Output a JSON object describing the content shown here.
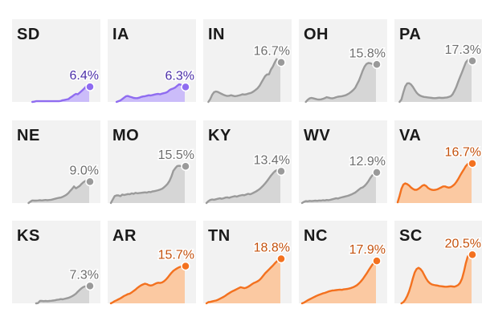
{
  "colors": {
    "purple": "#8f6cf0",
    "purple_fill": "#cbbcf9",
    "purple_text": "#4b2fa8",
    "gray": "#9a9a9a",
    "gray_fill": "#d6d6d6",
    "gray_text": "#6e6e6e",
    "orange": "#f3711f",
    "orange_fill": "#fbc9a2",
    "orange_text": "#c4520e",
    "panel_bg": "#f2f2f2"
  },
  "chart_data": {
    "type": "area",
    "description_of_units": "",
    "ylim": [
      0,
      22
    ],
    "x_points": 40,
    "panels": [
      {
        "state": "SD",
        "latest": 6.4,
        "label": "6.4%",
        "category": "purple",
        "values": [
          0,
          0,
          0,
          0,
          0,
          0,
          0,
          0,
          0,
          0,
          0.1,
          0.3,
          0.3,
          0.3,
          0.3,
          0.3,
          0.3,
          0.3,
          0.3,
          0.3,
          0.3,
          0.3,
          0.3,
          0.3,
          0.4,
          0.7,
          0.8,
          1.0,
          1.2,
          1.8,
          2.3,
          2.9,
          3.4,
          3.2,
          3.9,
          4.6,
          5.3,
          6.2,
          7.2,
          6.4
        ]
      },
      {
        "state": "IA",
        "latest": 6.3,
        "label": "6.3%",
        "category": "purple",
        "values": [
          0,
          0,
          0,
          0,
          0.3,
          0.6,
          1.2,
          1.8,
          2.4,
          2.5,
          2.2,
          2.0,
          1.7,
          1.6,
          1.6,
          1.8,
          2.1,
          2.3,
          2.4,
          2.6,
          2.8,
          2.7,
          2.9,
          3.1,
          3.3,
          3.4,
          3.2,
          3.5,
          3.7,
          3.9,
          4.3,
          5.0,
          5.4,
          5.7,
          6.1,
          6.8,
          7.4,
          7.2,
          6.9,
          6.3
        ]
      },
      {
        "state": "IN",
        "latest": 16.7,
        "label": "16.7%",
        "category": "gray",
        "values": [
          0,
          0,
          1.2,
          3.0,
          4.1,
          4.4,
          4.2,
          3.8,
          3.4,
          3.0,
          2.7,
          2.5,
          2.6,
          2.8,
          2.6,
          2.4,
          2.5,
          2.7,
          2.9,
          3.2,
          3.1,
          3.2,
          3.5,
          3.7,
          4.0,
          4.5,
          5.1,
          5.8,
          6.8,
          8.2,
          9.6,
          10.9,
          11.6,
          11.6,
          13.6,
          14.9,
          16.6,
          18.0,
          17.4,
          16.7
        ]
      },
      {
        "state": "OH",
        "latest": 15.8,
        "label": "15.8%",
        "category": "gray",
        "values": [
          0,
          0,
          0,
          0.9,
          1.5,
          1.7,
          1.5,
          1.3,
          1.1,
          1.0,
          1.1,
          1.3,
          1.6,
          2.0,
          1.8,
          1.6,
          1.5,
          1.7,
          2.0,
          2.2,
          2.3,
          2.4,
          2.6,
          2.8,
          3.2,
          3.7,
          4.3,
          5.0,
          5.9,
          7.4,
          9.0,
          11.0,
          13.2,
          14.9,
          16.0,
          16.4,
          16.3,
          16.0,
          15.9,
          15.8
        ]
      },
      {
        "state": "PA",
        "latest": 17.3,
        "label": "17.3%",
        "category": "gray",
        "values": [
          0,
          0,
          1.0,
          4.0,
          6.5,
          7.8,
          7.9,
          7.4,
          6.4,
          5.1,
          3.9,
          3.1,
          2.6,
          2.3,
          2.1,
          2.0,
          1.9,
          1.8,
          1.7,
          1.6,
          1.6,
          1.7,
          1.8,
          1.7,
          1.7,
          1.8,
          1.9,
          2.1,
          2.4,
          3.2,
          4.7,
          6.4,
          8.6,
          10.6,
          12.6,
          14.7,
          16.7,
          17.6,
          17.6,
          17.3
        ]
      },
      {
        "state": "NE",
        "latest": 9.0,
        "label": "9.0%",
        "category": "gray",
        "values": [
          0,
          0,
          0,
          0,
          0,
          0,
          0,
          0,
          0.6,
          1.1,
          1.0,
          1.0,
          1.1,
          1.2,
          1.1,
          1.2,
          1.3,
          1.2,
          1.3,
          1.4,
          1.6,
          1.8,
          2.0,
          2.2,
          2.3,
          2.6,
          3.0,
          3.5,
          4.2,
          5.1,
          6.0,
          7.0,
          6.2,
          6.7,
          7.2,
          8.1,
          8.8,
          9.3,
          9.1,
          9.0
        ]
      },
      {
        "state": "MO",
        "latest": 15.5,
        "label": "15.5%",
        "category": "gray",
        "values": [
          0,
          1.5,
          2.9,
          3.2,
          3.2,
          2.9,
          3.6,
          3.4,
          3.6,
          3.8,
          3.7,
          4.1,
          3.9,
          4.3,
          4.1,
          4.2,
          4.3,
          4.4,
          4.5,
          4.4,
          4.7,
          4.6,
          4.9,
          5.0,
          5.2,
          5.4,
          5.7,
          6.0,
          6.6,
          7.3,
          8.2,
          9.4,
          11.3,
          13.6,
          14.7,
          15.6,
          15.7,
          15.6,
          15.5,
          15.5
        ]
      },
      {
        "state": "KY",
        "latest": 13.4,
        "label": "13.4%",
        "category": "gray",
        "values": [
          0,
          0.8,
          1.3,
          1.5,
          1.4,
          1.6,
          1.8,
          2.0,
          1.8,
          2.0,
          2.3,
          2.4,
          2.2,
          2.5,
          2.7,
          2.9,
          2.7,
          3.0,
          3.2,
          3.4,
          3.3,
          3.6,
          3.9,
          3.7,
          4.0,
          4.4,
          4.8,
          5.3,
          5.9,
          6.6,
          7.4,
          8.3,
          9.3,
          10.4,
          11.5,
          12.5,
          13.3,
          13.8,
          13.6,
          13.4
        ]
      },
      {
        "state": "WV",
        "latest": 12.9,
        "label": "12.9%",
        "category": "gray",
        "values": [
          0,
          0.5,
          0.8,
          0.7,
          0.9,
          0.8,
          0.9,
          1.0,
          0.9,
          1.1,
          1.0,
          1.2,
          1.1,
          1.3,
          1.2,
          1.4,
          1.6,
          1.8,
          2.0,
          1.9,
          2.2,
          2.4,
          2.6,
          2.8,
          3.0,
          3.3,
          3.6,
          4.0,
          4.4,
          5.0,
          5.7,
          6.3,
          6.6,
          7.2,
          8.1,
          9.2,
          10.5,
          11.6,
          12.4,
          12.9
        ]
      },
      {
        "state": "VA",
        "latest": 16.7,
        "label": "16.7%",
        "category": "orange",
        "values": [
          0.3,
          3.0,
          6.0,
          7.8,
          8.3,
          8.0,
          7.4,
          6.6,
          6.0,
          5.6,
          5.6,
          6.0,
          6.6,
          7.3,
          7.6,
          7.2,
          6.4,
          5.9,
          5.6,
          5.5,
          5.6,
          5.8,
          6.2,
          6.6,
          7.0,
          7.0,
          6.7,
          6.5,
          6.7,
          7.2,
          7.9,
          8.9,
          10.2,
          11.6,
          13.0,
          14.3,
          15.6,
          16.5,
          16.9,
          16.7
        ]
      },
      {
        "state": "KS",
        "latest": 7.3,
        "label": "7.3%",
        "category": "gray",
        "values": [
          0,
          0,
          0,
          0,
          0,
          0,
          0,
          0,
          0,
          0,
          0,
          0,
          0.1,
          1.0,
          1.0,
          0.9,
          1.0,
          0.9,
          1.0,
          1.1,
          1.2,
          1.3,
          1.5,
          1.6,
          1.8,
          1.7,
          1.9,
          2.1,
          2.3,
          2.6,
          3.0,
          3.5,
          4.1,
          4.9,
          5.7,
          6.4,
          6.9,
          7.2,
          7.3,
          7.3
        ]
      },
      {
        "state": "AR",
        "latest": 15.7,
        "label": "15.7%",
        "category": "orange",
        "values": [
          0,
          0.4,
          0.9,
          1.3,
          1.7,
          2.1,
          2.6,
          3.1,
          3.5,
          3.9,
          4.1,
          4.6,
          5.2,
          5.8,
          6.5,
          7.1,
          7.6,
          8.0,
          8.3,
          8.1,
          7.7,
          7.5,
          7.7,
          8.1,
          8.5,
          8.7,
          8.6,
          8.8,
          9.3,
          10.0,
          10.9,
          11.9,
          12.9,
          13.7,
          14.3,
          14.8,
          15.2,
          15.5,
          15.7,
          15.7
        ]
      },
      {
        "state": "TN",
        "latest": 18.8,
        "label": "18.8%",
        "category": "orange",
        "values": [
          0,
          0.5,
          0.6,
          0.8,
          1.0,
          1.2,
          1.5,
          1.9,
          2.3,
          2.7,
          3.2,
          3.8,
          4.3,
          4.8,
          5.2,
          5.6,
          6.0,
          6.4,
          6.8,
          6.6,
          6.4,
          6.6,
          7.0,
          7.5,
          8.1,
          8.6,
          8.9,
          9.3,
          9.9,
          10.7,
          11.7,
          12.7,
          13.5,
          14.3,
          15.1,
          15.9,
          16.8,
          17.6,
          18.4,
          18.8
        ]
      },
      {
        "state": "NC",
        "latest": 17.9,
        "label": "17.9%",
        "category": "orange",
        "values": [
          0,
          0.3,
          0.8,
          1.3,
          1.7,
          2.1,
          2.5,
          2.9,
          3.3,
          3.6,
          3.9,
          4.2,
          4.4,
          4.7,
          5.0,
          5.2,
          5.4,
          5.5,
          5.6,
          5.7,
          5.8,
          5.7,
          5.9,
          6.0,
          6.1,
          6.3,
          6.5,
          6.8,
          7.2,
          7.7,
          8.4,
          9.2,
          10.2,
          11.3,
          12.5,
          13.8,
          15.0,
          16.2,
          17.2,
          17.9
        ]
      },
      {
        "state": "SC",
        "latest": 20.5,
        "label": "20.5%",
        "category": "orange",
        "values": [
          0,
          0,
          0,
          0.5,
          1.5,
          3.0,
          5.0,
          7.5,
          10.5,
          13.0,
          14.5,
          15.0,
          14.5,
          13.5,
          12.0,
          10.5,
          9.3,
          8.5,
          8.0,
          7.8,
          7.6,
          7.5,
          7.3,
          7.2,
          7.1,
          7.0,
          7.0,
          7.1,
          7.2,
          7.1,
          7.0,
          7.3,
          7.8,
          8.7,
          10.5,
          13.5,
          17.0,
          19.8,
          20.8,
          20.5
        ]
      }
    ]
  }
}
